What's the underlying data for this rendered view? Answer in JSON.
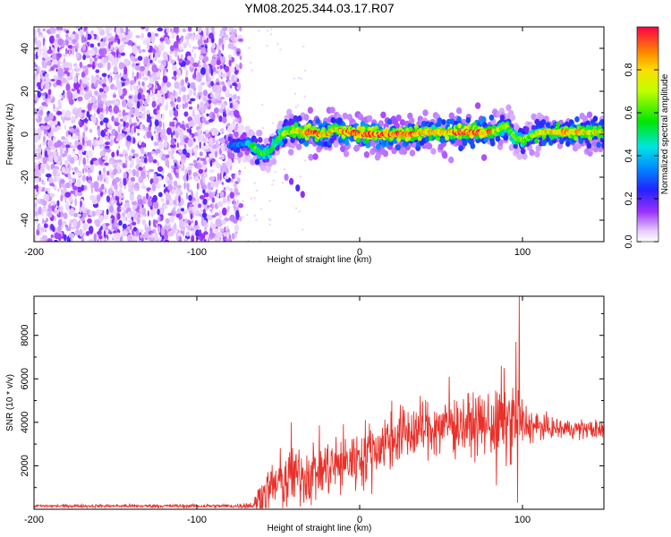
{
  "title": "YM08.2025.344.03.17.R07",
  "chart_data": [
    {
      "type": "heatmap",
      "name": "spectrogram",
      "xlabel": "Height of straight line (km)",
      "ylabel": "Frequency (Hz)",
      "xlim": [
        -200,
        150
      ],
      "ylim": [
        -50,
        50
      ],
      "xticks": [
        -200,
        -100,
        0,
        100
      ],
      "yticks": [
        -40,
        -20,
        0,
        20,
        40
      ],
      "colorbar": {
        "label": "Normalized spectral amplitude",
        "range": [
          0,
          1
        ],
        "ticks": [
          "0.0",
          "0.2",
          "0.4",
          "0.6",
          "0.8"
        ],
        "ticks_values": [
          0,
          0.2,
          0.4,
          0.6,
          0.8
        ]
      },
      "noise_region_x": [
        -200,
        -73
      ],
      "signal_track": {
        "x": [
          -80,
          -75,
          -70,
          -65,
          -60,
          -55,
          -50,
          -45,
          -40,
          -35,
          -30,
          -25,
          -20,
          -15,
          -10,
          -5,
          0,
          10,
          20,
          30,
          40,
          50,
          60,
          70,
          80,
          85,
          90,
          95,
          100,
          110,
          120,
          130,
          140,
          150
        ],
        "freq": [
          -5,
          -5,
          -4,
          -6,
          -9,
          -8,
          -2,
          1,
          2,
          1,
          1,
          0,
          0,
          3,
          1,
          1,
          0,
          0,
          0,
          0,
          1,
          1,
          1,
          1,
          1,
          2,
          4,
          -1,
          -3,
          1,
          1,
          1,
          1,
          1
        ],
        "amplitude": [
          0.3,
          0.3,
          0.35,
          0.6,
          0.55,
          0.5,
          0.55,
          0.65,
          0.7,
          0.75,
          0.9,
          0.85,
          0.8,
          0.7,
          0.85,
          0.9,
          0.92,
          0.9,
          0.9,
          0.85,
          0.75,
          0.8,
          0.85,
          0.9,
          0.85,
          0.7,
          0.65,
          0.6,
          0.6,
          0.7,
          0.75,
          0.8,
          0.75,
          0.7
        ]
      },
      "secondary_trace": {
        "x": [
          -45,
          -42,
          -38,
          -35
        ],
        "freq": [
          -20,
          -22,
          -25,
          -28
        ],
        "amplitude": [
          0.1,
          0.15,
          0.2,
          0.15
        ]
      }
    },
    {
      "type": "line",
      "name": "snr",
      "xlabel": "Height of straight line (km)",
      "ylabel": "SNR (10 * v/v)",
      "xlim": [
        -200,
        150
      ],
      "ylim": [
        0,
        9800
      ],
      "xticks": [
        -200,
        -100,
        0,
        100
      ],
      "yticks": [
        2000,
        4000,
        6000,
        8000
      ],
      "color": "#e8312a",
      "envelope": {
        "x": [
          -200,
          -75,
          -65,
          -60,
          -50,
          -40,
          -30,
          -20,
          -10,
          0,
          10,
          20,
          30,
          40,
          50,
          60,
          70,
          80,
          85,
          90,
          95,
          98,
          100,
          110,
          120,
          130,
          140,
          150
        ],
        "mean": [
          150,
          150,
          200,
          600,
          1200,
          1500,
          1700,
          1900,
          2100,
          2400,
          2800,
          3300,
          3500,
          3700,
          3800,
          3900,
          3900,
          3900,
          3900,
          4000,
          4100,
          4200,
          3900,
          3800,
          3700,
          3700,
          3700,
          3600
        ],
        "spread": [
          60,
          80,
          200,
          900,
          1300,
          1300,
          1300,
          1300,
          1300,
          1300,
          1300,
          1300,
          1200,
          1200,
          1200,
          1200,
          1200,
          1300,
          1500,
          1800,
          1500,
          1500,
          1000,
          500,
          450,
          400,
          400,
          400
        ]
      },
      "spikes": [
        {
          "x": 98,
          "y": 9800
        },
        {
          "x": 87,
          "y": 6600
        },
        {
          "x": 96,
          "y": 7700
        },
        {
          "x": 55,
          "y": 6100
        },
        {
          "x": 97,
          "y": 300
        },
        {
          "x": -42,
          "y": 4000
        },
        {
          "x": 84,
          "y": 1100
        }
      ]
    }
  ]
}
